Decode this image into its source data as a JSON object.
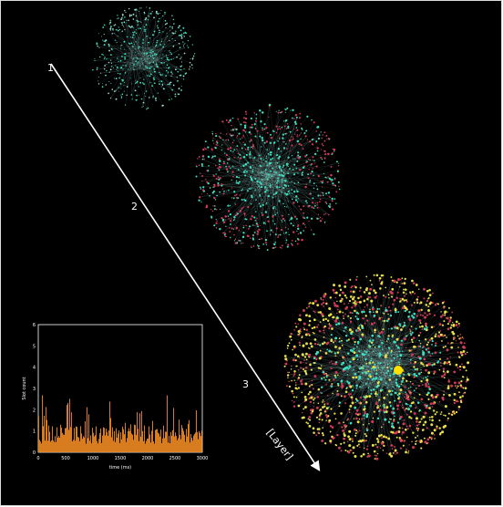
{
  "stages": [
    {
      "label": "1"
    },
    {
      "label": "2"
    },
    {
      "label": "3"
    }
  ],
  "axis_label": "[Layer]",
  "network_colors": {
    "core": "#3ee0c0",
    "mid": "#d23a5a",
    "outer": "#e8e04a",
    "edge": "#9fd9cf",
    "accent": "#ffe000"
  },
  "inset": {
    "ylabel": "Slot count",
    "xlabel": "time (ms)",
    "bar_color": "#f08a24",
    "x_ticks": [
      "0",
      "500",
      "1000",
      "1500",
      "2000",
      "2500",
      "3000"
    ],
    "y_ticks": [
      "0",
      "1",
      "2",
      "3",
      "4",
      "5",
      "6"
    ]
  }
}
